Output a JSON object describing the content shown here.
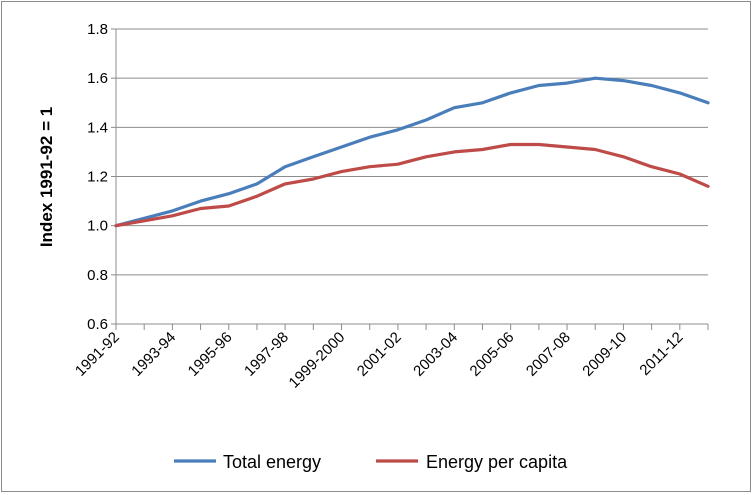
{
  "chart_data": {
    "type": "line",
    "title": "",
    "xlabel": "",
    "ylabel": "Index 1991-92 = 1",
    "ylim": [
      0.6,
      1.8
    ],
    "yticks": [
      "0.6",
      "0.8",
      "1.0",
      "1.2",
      "1.4",
      "1.6",
      "1.8"
    ],
    "x": [
      "1991-92",
      "1992-93",
      "1993-94",
      "1994-95",
      "1995-96",
      "1996-97",
      "1997-98",
      "1998-99",
      "1999-2000",
      "2000-01",
      "2001-02",
      "2002-03",
      "2003-04",
      "2004-05",
      "2005-06",
      "2006-07",
      "2007-08",
      "2008-09",
      "2009-10",
      "2010-11",
      "2011-12",
      "2012-13"
    ],
    "xtick_labels": [
      "1991-92",
      "",
      "1993-94",
      "",
      "1995-96",
      "",
      "1997-98",
      "",
      "1999-2000",
      "",
      "2001-02",
      "",
      "2003-04",
      "",
      "2005-06",
      "",
      "2007-08",
      "",
      "2009-10",
      "",
      "2011-12",
      ""
    ],
    "series": [
      {
        "name": "Total energy",
        "color": "#4a7ebb",
        "values": [
          1.0,
          1.03,
          1.06,
          1.1,
          1.13,
          1.17,
          1.24,
          1.28,
          1.32,
          1.36,
          1.39,
          1.43,
          1.48,
          1.5,
          1.54,
          1.57,
          1.58,
          1.6,
          1.59,
          1.57,
          1.54,
          1.5
        ]
      },
      {
        "name": "Energy per capita",
        "color": "#be4b48",
        "values": [
          1.0,
          1.02,
          1.04,
          1.07,
          1.08,
          1.12,
          1.17,
          1.19,
          1.22,
          1.24,
          1.25,
          1.28,
          1.3,
          1.31,
          1.33,
          1.33,
          1.32,
          1.31,
          1.28,
          1.24,
          1.21,
          1.16
        ]
      }
    ],
    "grid": {
      "horizontal": true,
      "vertical": false
    },
    "legend_position": "bottom"
  }
}
